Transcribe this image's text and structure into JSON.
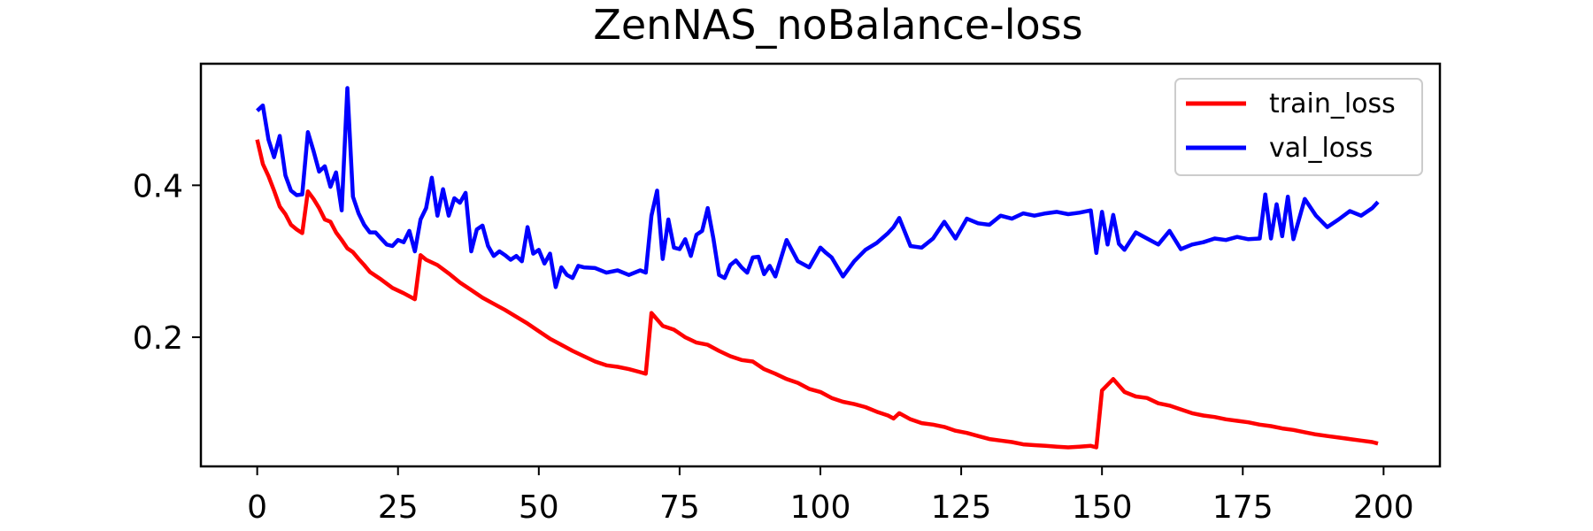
{
  "chart_data": {
    "type": "line",
    "title": "ZenNAS_noBalance-loss",
    "xlabel": "",
    "ylabel": "",
    "xlim": [
      -10,
      210
    ],
    "ylim": [
      0.03,
      0.56
    ],
    "xticks": [
      0,
      25,
      50,
      75,
      100,
      125,
      150,
      175,
      200
    ],
    "yticks": [
      0.2,
      0.4
    ],
    "ytick_labels": [
      "0.2",
      "0.4"
    ],
    "grid": false,
    "legend_position": "top-right",
    "series": [
      {
        "name": "train_loss",
        "color": "#ff0000",
        "x": [
          0,
          1,
          2,
          3,
          4,
          5,
          6,
          7,
          8,
          9,
          10,
          11,
          12,
          13,
          14,
          15,
          16,
          17,
          18,
          19,
          20,
          22,
          24,
          26,
          28,
          29,
          30,
          32,
          34,
          36,
          38,
          40,
          42,
          44,
          46,
          48,
          50,
          52,
          54,
          56,
          58,
          60,
          62,
          64,
          66,
          68,
          69,
          70,
          72,
          74,
          76,
          78,
          80,
          82,
          84,
          86,
          88,
          90,
          92,
          94,
          96,
          98,
          100,
          102,
          104,
          106,
          108,
          110,
          112,
          113,
          114,
          116,
          118,
          120,
          122,
          124,
          126,
          128,
          130,
          132,
          134,
          136,
          138,
          140,
          142,
          144,
          146,
          148,
          149,
          150,
          152,
          154,
          156,
          158,
          160,
          162,
          164,
          166,
          168,
          170,
          172,
          174,
          176,
          178,
          180,
          182,
          184,
          186,
          188,
          190,
          192,
          194,
          196,
          198,
          199
        ],
        "y": [
          0.46,
          0.428,
          0.412,
          0.393,
          0.372,
          0.362,
          0.348,
          0.342,
          0.337,
          0.392,
          0.382,
          0.37,
          0.355,
          0.352,
          0.338,
          0.328,
          0.317,
          0.312,
          0.303,
          0.295,
          0.286,
          0.276,
          0.265,
          0.258,
          0.25,
          0.308,
          0.302,
          0.295,
          0.284,
          0.272,
          0.262,
          0.252,
          0.244,
          0.236,
          0.227,
          0.218,
          0.208,
          0.198,
          0.19,
          0.182,
          0.175,
          0.168,
          0.163,
          0.161,
          0.158,
          0.154,
          0.152,
          0.232,
          0.215,
          0.21,
          0.2,
          0.193,
          0.19,
          0.182,
          0.175,
          0.17,
          0.168,
          0.158,
          0.152,
          0.145,
          0.14,
          0.132,
          0.128,
          0.12,
          0.115,
          0.112,
          0.108,
          0.102,
          0.097,
          0.093,
          0.1,
          0.092,
          0.087,
          0.085,
          0.082,
          0.077,
          0.074,
          0.07,
          0.066,
          0.064,
          0.062,
          0.059,
          0.058,
          0.057,
          0.056,
          0.055,
          0.056,
          0.057,
          0.055,
          0.13,
          0.145,
          0.128,
          0.122,
          0.12,
          0.113,
          0.11,
          0.105,
          0.1,
          0.097,
          0.095,
          0.092,
          0.09,
          0.088,
          0.085,
          0.083,
          0.08,
          0.078,
          0.075,
          0.072,
          0.07,
          0.068,
          0.066,
          0.064,
          0.062,
          0.06
        ]
      },
      {
        "name": "val_loss",
        "color": "#0000ff",
        "x": [
          0,
          1,
          2,
          3,
          4,
          5,
          6,
          7,
          8,
          9,
          10,
          11,
          12,
          13,
          14,
          15,
          16,
          17,
          18,
          19,
          20,
          21,
          22,
          23,
          24,
          25,
          26,
          27,
          28,
          29,
          30,
          31,
          32,
          33,
          34,
          35,
          36,
          37,
          38,
          39,
          40,
          41,
          42,
          43,
          44,
          45,
          46,
          47,
          48,
          49,
          50,
          51,
          52,
          53,
          54,
          55,
          56,
          57,
          58,
          60,
          62,
          64,
          66,
          68,
          69,
          70,
          71,
          72,
          73,
          74,
          75,
          76,
          77,
          78,
          79,
          80,
          81,
          82,
          83,
          84,
          85,
          86,
          87,
          88,
          89,
          90,
          91,
          92,
          94,
          96,
          98,
          100,
          101,
          102,
          104,
          106,
          108,
          110,
          112,
          113,
          114,
          116,
          118,
          120,
          122,
          124,
          126,
          128,
          130,
          132,
          134,
          136,
          138,
          140,
          142,
          144,
          146,
          148,
          149,
          150,
          151,
          152,
          153,
          154,
          156,
          158,
          160,
          162,
          164,
          166,
          168,
          170,
          172,
          174,
          176,
          178,
          179,
          180,
          181,
          182,
          183,
          184,
          186,
          188,
          190,
          192,
          194,
          196,
          198,
          199
        ],
        "y": [
          0.498,
          0.505,
          0.46,
          0.437,
          0.465,
          0.413,
          0.393,
          0.387,
          0.388,
          0.47,
          0.445,
          0.418,
          0.425,
          0.398,
          0.417,
          0.367,
          0.528,
          0.385,
          0.363,
          0.348,
          0.338,
          0.338,
          0.33,
          0.322,
          0.32,
          0.328,
          0.325,
          0.34,
          0.313,
          0.355,
          0.37,
          0.41,
          0.36,
          0.395,
          0.36,
          0.383,
          0.377,
          0.39,
          0.313,
          0.342,
          0.347,
          0.32,
          0.307,
          0.313,
          0.308,
          0.302,
          0.307,
          0.3,
          0.345,
          0.31,
          0.315,
          0.297,
          0.31,
          0.266,
          0.292,
          0.282,
          0.278,
          0.294,
          0.292,
          0.291,
          0.285,
          0.288,
          0.282,
          0.288,
          0.285,
          0.36,
          0.393,
          0.303,
          0.355,
          0.318,
          0.316,
          0.329,
          0.307,
          0.335,
          0.34,
          0.37,
          0.33,
          0.282,
          0.278,
          0.295,
          0.301,
          0.292,
          0.285,
          0.305,
          0.306,
          0.283,
          0.294,
          0.28,
          0.328,
          0.3,
          0.292,
          0.318,
          0.311,
          0.305,
          0.28,
          0.3,
          0.315,
          0.324,
          0.337,
          0.345,
          0.357,
          0.32,
          0.318,
          0.33,
          0.352,
          0.33,
          0.356,
          0.35,
          0.348,
          0.36,
          0.356,
          0.363,
          0.36,
          0.363,
          0.365,
          0.362,
          0.364,
          0.367,
          0.311,
          0.365,
          0.322,
          0.361,
          0.323,
          0.315,
          0.338,
          0.33,
          0.322,
          0.34,
          0.316,
          0.322,
          0.325,
          0.33,
          0.328,
          0.332,
          0.329,
          0.33,
          0.388,
          0.33,
          0.375,
          0.333,
          0.385,
          0.329,
          0.382,
          0.36,
          0.345,
          0.355,
          0.366,
          0.36,
          0.37,
          0.378
        ]
      }
    ]
  }
}
